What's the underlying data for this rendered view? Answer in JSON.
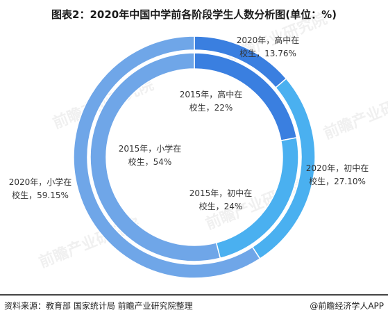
{
  "chart_data": {
    "type": "pie",
    "title": "图表2：2020年中国中学前各阶段学生人数分析图(单位：%)",
    "rings": [
      {
        "name": "2015",
        "slices": [
          {
            "label": "2015年，高中在校生，22%",
            "line1": "2015年，高中在",
            "line2": "校生，22%",
            "value": 22,
            "color": "#3a7fe0"
          },
          {
            "label": "2015年，初中在校生，24%",
            "line1": "2015年，初中在",
            "line2": "校生，24%",
            "value": 24,
            "color": "#4ab0f0"
          },
          {
            "label": "2015年，小学在校生，54%",
            "line1": "2015年，小学在",
            "line2": "校生，54%",
            "value": 54,
            "color": "#6fa6e8"
          }
        ]
      },
      {
        "name": "2020",
        "slices": [
          {
            "label": "2020年，高中在校生，13.76%",
            "line1": "2020年，高中在",
            "line2": "校生，13.76%",
            "value": 13.76,
            "color": "#3a7fe0"
          },
          {
            "label": "2020年，初中在校生，27.10%",
            "line1": "2020年，初中在",
            "line2": "校生，27.10%",
            "value": 27.1,
            "color": "#4ab0f0"
          },
          {
            "label": "2020年，小学在校生，59.15%",
            "line1": "2020年，小学在",
            "line2": "校生，59.15%",
            "value": 59.15,
            "color": "#6fa6e8"
          }
        ]
      }
    ]
  },
  "footer": {
    "source": "资料来源：教育部 国家统计局 前瞻产业研究院整理",
    "brand": "@前瞻经济学人APP"
  },
  "watermark": "前瞻产业研究院"
}
